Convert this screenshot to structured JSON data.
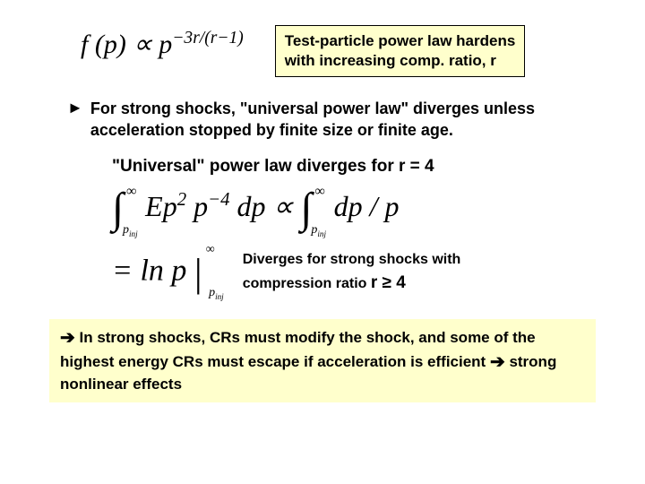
{
  "top_formula_html": "<span style='font-style:italic'>f</span> (<span style='font-style:italic'>p</span>) ∝ <span style='font-style:italic'>p</span><sup>−3<i>r</i>/(<i>r</i>−1)</sup>",
  "note_box": {
    "line1": "Test-particle power law hardens",
    "line2": "with increasing comp. ratio, r"
  },
  "bullet": {
    "mark": "►",
    "text": "For strong shocks, \"universal power law\" diverges unless acceleration stopped by finite size or finite age."
  },
  "sub_heading": "\"Universal\" power law diverges for  r = 4",
  "integral_html": "<span class='integral-sym'>∫<span class='int-sup'>∞</span><span class='int-sub'>p<sub>inj</sub></span></span>&nbsp;&nbsp;&nbsp;<i>Ep</i><sup>2</sup> <i>p</i><sup>−4</sup> <i>dp</i> ∝ <span class='integral-sym'>∫<span class='int-sup'>∞</span><span class='int-sub'>p<sub>inj</sub></span></span>&nbsp;&nbsp;&nbsp;<i>dp</i> / <i>p</i>",
  "ln_html": "= ln <i>p</i> <span class='vbar'>|<span class='bar-sup'>∞</span><span class='bar-sub'>p<sub>inj</sub></span></span>",
  "diverge_note": {
    "line1": "Diverges for strong shocks with",
    "line2_prefix": "compression ratio ",
    "line2_math": "r ≥ 4"
  },
  "bottom": {
    "arrow": "➔",
    "text1": "  In strong shocks,  CRs must modify the shock, and some of the highest energy CRs must escape if acceleration is efficient ",
    "arrow2": "➔",
    "text2": " strong nonlinear effects"
  },
  "colors": {
    "highlight_bg": "#ffffcc",
    "text": "#000000",
    "page_bg": "#ffffff"
  }
}
